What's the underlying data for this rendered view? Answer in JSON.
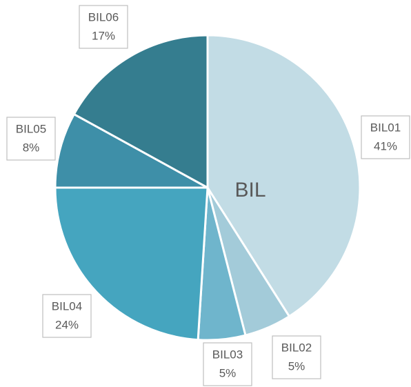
{
  "chart_data": {
    "type": "pie",
    "title": "BIL",
    "categories": [
      "BIL01",
      "BIL02",
      "BIL03",
      "BIL04",
      "BIL05",
      "BIL06"
    ],
    "values": [
      41,
      5,
      5,
      24,
      8,
      17
    ],
    "value_labels": [
      "41%",
      "5%",
      "5%",
      "24%",
      "8%",
      "17%"
    ],
    "colors": [
      "#c2dce5",
      "#a3cbd9",
      "#6fb5cc",
      "#45a5bf",
      "#3e8fa8",
      "#357d8f"
    ]
  }
}
